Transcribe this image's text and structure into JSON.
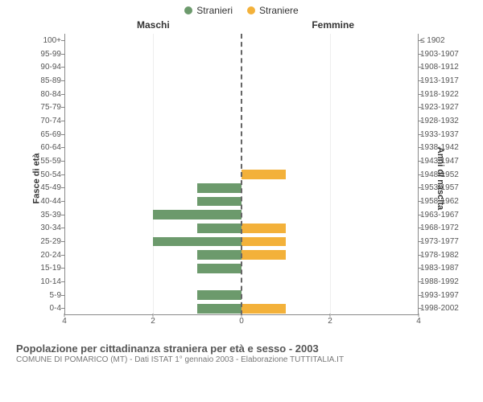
{
  "legend": {
    "male": "Stranieri",
    "female": "Straniere"
  },
  "columns": {
    "male": "Maschi",
    "female": "Femmine"
  },
  "axis": {
    "left_label": "Fasce di età",
    "right_label": "Anni di nascita"
  },
  "colors": {
    "male": "#6c9a6c",
    "female": "#f3b13a",
    "background": "#ffffff",
    "grid": "#eeeeee",
    "axis": "#888888",
    "text": "#555555",
    "center_line": "#666666"
  },
  "chart": {
    "type": "population-pyramid",
    "x_max": 4,
    "x_ticks": [
      4,
      2,
      0,
      2,
      4
    ],
    "bar_height_pct": 70,
    "rows": [
      {
        "age": "100+",
        "birth": "≤ 1902",
        "male": 0,
        "female": 0
      },
      {
        "age": "95-99",
        "birth": "1903-1907",
        "male": 0,
        "female": 0
      },
      {
        "age": "90-94",
        "birth": "1908-1912",
        "male": 0,
        "female": 0
      },
      {
        "age": "85-89",
        "birth": "1913-1917",
        "male": 0,
        "female": 0
      },
      {
        "age": "80-84",
        "birth": "1918-1922",
        "male": 0,
        "female": 0
      },
      {
        "age": "75-79",
        "birth": "1923-1927",
        "male": 0,
        "female": 0
      },
      {
        "age": "70-74",
        "birth": "1928-1932",
        "male": 0,
        "female": 0
      },
      {
        "age": "65-69",
        "birth": "1933-1937",
        "male": 0,
        "female": 0
      },
      {
        "age": "60-64",
        "birth": "1938-1942",
        "male": 0,
        "female": 0
      },
      {
        "age": "55-59",
        "birth": "1943-1947",
        "male": 0,
        "female": 0
      },
      {
        "age": "50-54",
        "birth": "1948-1952",
        "male": 0,
        "female": 1
      },
      {
        "age": "45-49",
        "birth": "1953-1957",
        "male": 1,
        "female": 0
      },
      {
        "age": "40-44",
        "birth": "1958-1962",
        "male": 1,
        "female": 0
      },
      {
        "age": "35-39",
        "birth": "1963-1967",
        "male": 2,
        "female": 0
      },
      {
        "age": "30-34",
        "birth": "1968-1972",
        "male": 1,
        "female": 1
      },
      {
        "age": "25-29",
        "birth": "1973-1977",
        "male": 2,
        "female": 1
      },
      {
        "age": "20-24",
        "birth": "1978-1982",
        "male": 1,
        "female": 1
      },
      {
        "age": "15-19",
        "birth": "1983-1987",
        "male": 1,
        "female": 0
      },
      {
        "age": "10-14",
        "birth": "1988-1992",
        "male": 0,
        "female": 0
      },
      {
        "age": "5-9",
        "birth": "1993-1997",
        "male": 1,
        "female": 0
      },
      {
        "age": "0-4",
        "birth": "1998-2002",
        "male": 1,
        "female": 1
      }
    ]
  },
  "footer": {
    "title": "Popolazione per cittadinanza straniera per età e sesso - 2003",
    "subtitle": "COMUNE DI POMARICO (MT) - Dati ISTAT 1° gennaio 2003 - Elaborazione TUTTITALIA.IT"
  }
}
